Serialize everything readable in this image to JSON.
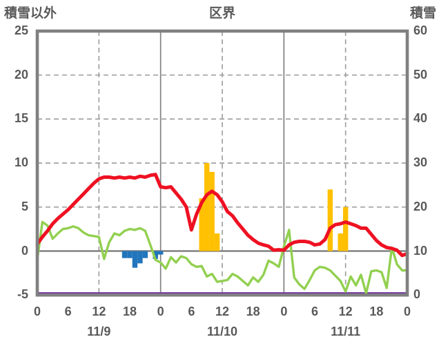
{
  "page": {
    "left_axis_title": "積雪以外",
    "title": "区界",
    "right_axis_title": "積雪"
  },
  "colors": {
    "red_line": "#ee1122",
    "green_line": "#92d050",
    "orange_bars": "#ffc000",
    "blue_bars": "#2175bc",
    "purple_line": "#7030a0",
    "frame": "#808080",
    "grid": "#a0a0a0",
    "text": "#595959"
  },
  "chart_data": {
    "type": "combo: line + bar",
    "title": "区界",
    "x_axis": {
      "unit": "hour",
      "range_hours": [
        0,
        72
      ],
      "tick_hours": [
        0,
        6,
        12,
        18,
        24,
        30,
        36,
        42,
        48,
        54,
        60,
        66,
        72
      ],
      "tick_labels": [
        "0",
        "6",
        "12",
        "18",
        "0",
        "6",
        "12",
        "18",
        "0",
        "6",
        "12",
        "18",
        "0"
      ],
      "date_labels": [
        {
          "label": "11/9",
          "at_hour": 12
        },
        {
          "label": "11/10",
          "at_hour": 36
        },
        {
          "label": "11/11",
          "at_hour": 60
        }
      ]
    },
    "left_axis": {
      "title": "積雪以外",
      "min": -5,
      "max": 25,
      "ticks": [
        25,
        20,
        15,
        10,
        5,
        0,
        -5
      ]
    },
    "right_axis": {
      "title": "積雪",
      "min": 0,
      "max": 60,
      "ticks": [
        60,
        50,
        40,
        30,
        20,
        10,
        0
      ]
    },
    "grid": {
      "h_dashed_at_left_values": [
        20,
        15,
        10,
        5
      ],
      "zero_line_at": 0,
      "v_dashed_at_hours": [
        12,
        36,
        60
      ],
      "v_solid_at_hours": [
        24,
        48
      ]
    },
    "series": [
      {
        "id": "red-line",
        "type": "line",
        "axis": "left",
        "x_start_hour": 0,
        "x_step_hours": 1,
        "values": [
          0.8,
          1.6,
          2.3,
          3.1,
          3.7,
          4.2,
          4.7,
          5.3,
          5.9,
          6.5,
          7.1,
          7.7,
          8.2,
          8.4,
          8.4,
          8.3,
          8.4,
          8.3,
          8.4,
          8.3,
          8.5,
          8.4,
          8.6,
          8.7,
          7.3,
          7.2,
          7.3,
          6.6,
          5.9,
          5.0,
          2.4,
          4.2,
          5.5,
          6.4,
          6.8,
          6.4,
          5.6,
          4.5,
          4.0,
          3.2,
          2.5,
          1.8,
          1.3,
          0.9,
          0.7,
          0.55,
          0.1,
          0.15,
          0.1,
          0.7,
          1.0,
          1.1,
          1.1,
          1.0,
          0.7,
          0.8,
          1.3,
          2.6,
          3.0,
          3.1,
          3.3,
          3.1,
          2.9,
          2.6,
          2.6,
          1.9,
          1.2,
          0.7,
          0.4,
          0.3,
          0.1,
          -0.5,
          -0.3
        ]
      },
      {
        "id": "green-line",
        "type": "line",
        "axis": "left",
        "x_start_hour": 0,
        "x_step_hours": 1,
        "values": [
          -1.0,
          3.3,
          2.9,
          1.4,
          2.0,
          2.5,
          2.6,
          2.8,
          2.6,
          2.1,
          1.8,
          1.7,
          1.6,
          -0.9,
          1.0,
          2.0,
          1.8,
          2.3,
          2.5,
          2.4,
          2.6,
          2.3,
          0.7,
          -1.0,
          -1.3,
          -2.0,
          -0.7,
          -1.3,
          -0.6,
          -0.8,
          -1.5,
          -1.8,
          -1.7,
          -2.9,
          -2.6,
          -3.5,
          -3.4,
          -3.3,
          -2.6,
          -2.9,
          -3.4,
          -3.9,
          -3.0,
          -3.5,
          -2.7,
          -1.1,
          -1.4,
          -1.8,
          0.5,
          2.4,
          -3.0,
          -3.8,
          -4.3,
          -3.3,
          -2.2,
          -1.8,
          -1.9,
          -2.2,
          -2.8,
          -3.4,
          -4.6,
          -2.9,
          -3.9,
          -2.7,
          -4.8,
          -2.3,
          -2.2,
          -2.4,
          -4.2,
          0.4,
          -1.5,
          -2.2,
          -2.2
        ]
      },
      {
        "id": "orange-bars",
        "type": "bar",
        "axis": "left",
        "points": [
          {
            "hour": 32,
            "value": 6
          },
          {
            "hour": 33,
            "value": 10
          },
          {
            "hour": 34,
            "value": 9
          },
          {
            "hour": 35,
            "value": 2
          },
          {
            "hour": 57,
            "value": 7
          },
          {
            "hour": 59,
            "value": 2
          },
          {
            "hour": 60,
            "value": 5
          }
        ]
      },
      {
        "id": "blue-bars",
        "type": "bar",
        "axis": "left",
        "points": [
          {
            "hour": 17,
            "value": -0.8
          },
          {
            "hour": 18,
            "value": -0.8
          },
          {
            "hour": 19,
            "value": -1.9
          },
          {
            "hour": 20,
            "value": -1.4
          },
          {
            "hour": 21,
            "value": -0.8
          },
          {
            "hour": 23,
            "value": -0.9
          },
          {
            "hour": 24,
            "value": -0.4
          }
        ]
      },
      {
        "id": "purple-line",
        "type": "line",
        "axis": "right",
        "constant_value": 0,
        "x_start_hour": 0,
        "x_end_hour": 72
      }
    ]
  }
}
